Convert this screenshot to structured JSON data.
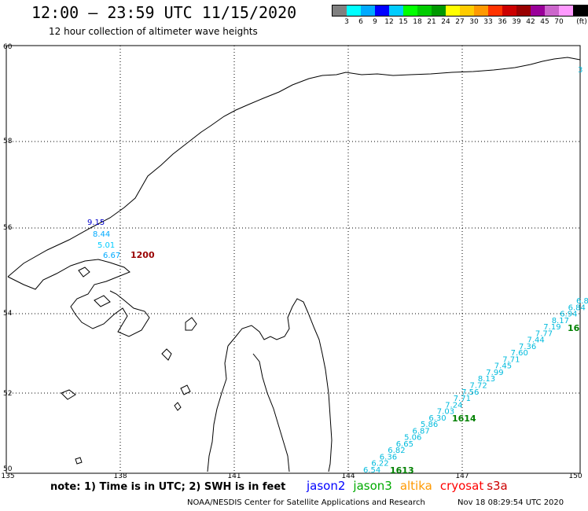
{
  "header": {
    "title": "12:00 — 23:59 UTC 11/15/2020",
    "subtitle": "12 hour collection of altimeter wave heights"
  },
  "legend": {
    "unit": "(ft)",
    "colors": [
      "#808080",
      "#00ffff",
      "#00aaff",
      "#0000ff",
      "#00ccff",
      "#00ff00",
      "#00cc00",
      "#009900",
      "#ffff00",
      "#ffcc00",
      "#ff9900",
      "#ff3300",
      "#cc0000",
      "#990000",
      "#990099",
      "#cc66cc",
      "#ff99ff",
      "#000000"
    ],
    "labels": [
      "3",
      "6",
      "9",
      "12",
      "15",
      "18",
      "21",
      "24",
      "27",
      "30",
      "33",
      "36",
      "39",
      "42",
      "45",
      "70"
    ]
  },
  "map": {
    "lat_labels": [
      "60",
      "58",
      "56",
      "54",
      "52",
      "50"
    ],
    "lon_labels": [
      "135",
      "138",
      "141",
      "144",
      "147",
      "150"
    ],
    "pass_times": [
      {
        "text": "1200",
        "color": "#990000"
      },
      {
        "text": "1614",
        "color": "#008000"
      },
      {
        "text": "1613",
        "color": "#008000"
      },
      {
        "text": "16",
        "color": "#008000"
      }
    ],
    "track_west": [
      {
        "text": "9.15",
        "color": "#0000cc"
      },
      {
        "text": "8.44",
        "color": "#00aaff"
      },
      {
        "text": "5.01",
        "color": "#00ccff"
      },
      {
        "text": "6.67",
        "color": "#00aaff"
      }
    ],
    "track_east": [
      "6.54",
      "6.22",
      "6.36",
      "6.82",
      "6.65",
      "5.06",
      "6.87",
      "5.86",
      "6.30",
      "7.03",
      "7.24",
      "7.71",
      "7.56",
      "7.72",
      "8.13",
      "7.99",
      "7.45",
      "7.71",
      "7.60",
      "7.36",
      "7.44",
      "7.77",
      "7.19",
      "8.17",
      "6.94",
      "6.84",
      "6.8"
    ],
    "edge_label": "3"
  },
  "footer": {
    "note": "note: 1) Time is in UTC; 2) SWH is in feet",
    "satellites": [
      {
        "name": "jason2",
        "color": "#0000ff"
      },
      {
        "name": "jason3",
        "color": "#00aa00"
      },
      {
        "name": "altika",
        "color": "#ff9900"
      },
      {
        "name": "cryosat",
        "color": "#ff0000"
      },
      {
        "name": "s3a",
        "color": "#cc0000"
      }
    ],
    "credit": "NOAA/NESDIS Center for Satellite Applications and Research",
    "timestamp": "Nov 18 08:29:54 UTC 2020"
  }
}
